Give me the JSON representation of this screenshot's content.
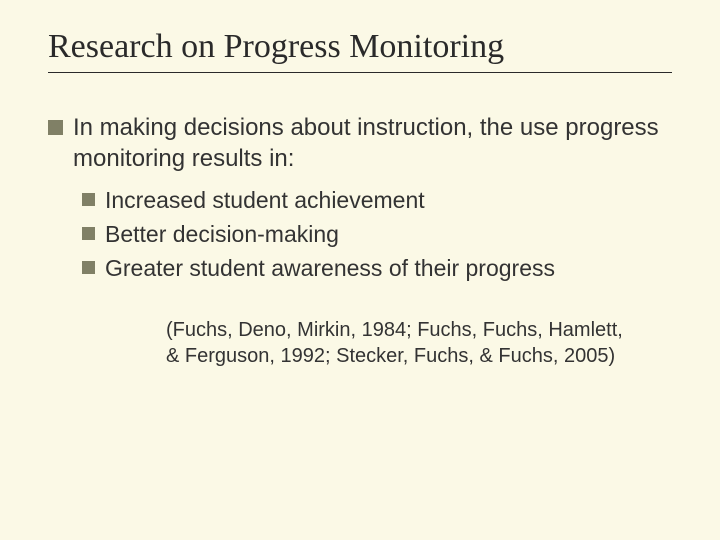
{
  "slide": {
    "background_color": "#fbf9e6",
    "title": {
      "text": "Research on Progress Monitoring",
      "font_family": "Times New Roman",
      "font_size_pt": 34,
      "color": "#2a2a2a",
      "underline_color": "#2a2a2a"
    },
    "bullet_square_color": "#808066",
    "main_bullet": {
      "text": "In making decisions about instruction, the use progress monitoring results in:",
      "font_size_pt": 24,
      "color": "#333333"
    },
    "sub_bullets": [
      {
        "text": "Increased student achievement"
      },
      {
        "text": "Better decision-making"
      },
      {
        "text": "Greater student awareness of their progress"
      }
    ],
    "sub_bullet_style": {
      "font_size_pt": 23,
      "color": "#333333"
    },
    "citation": {
      "text": "(Fuchs, Deno, Mirkin, 1984; Fuchs, Fuchs, Hamlett, & Ferguson, 1992; Stecker, Fuchs, & Fuchs, 2005)",
      "font_size_pt": 20,
      "color": "#333333"
    }
  }
}
